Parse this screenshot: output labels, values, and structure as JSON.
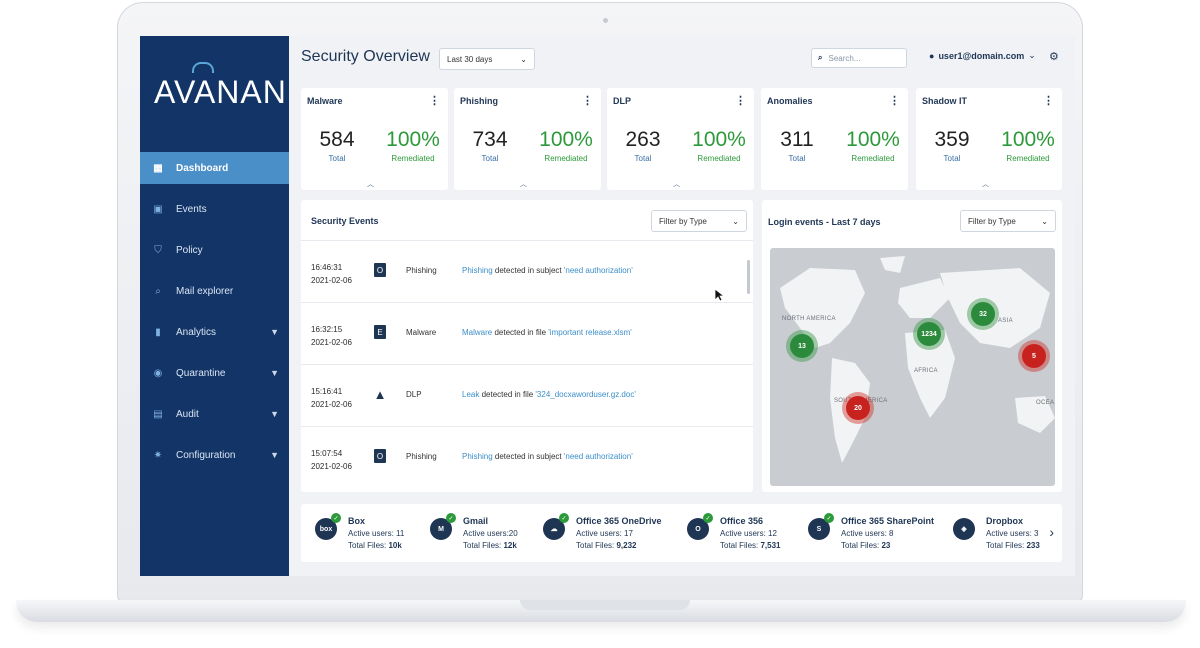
{
  "header": {
    "title": "Security Overview",
    "range": "Last 30 days",
    "search_placeholder": "Search...",
    "user": "user1@domain.com"
  },
  "sidebar": {
    "logo": "AVANAN",
    "items": [
      {
        "label": "Dashboard",
        "icon": "dashboard-icon",
        "active": true,
        "expand": false
      },
      {
        "label": "Events",
        "icon": "calendar-icon",
        "active": false,
        "expand": false
      },
      {
        "label": "Policy",
        "icon": "shield-icon",
        "active": false,
        "expand": false
      },
      {
        "label": "Mail explorer",
        "icon": "search-icon",
        "active": false,
        "expand": false
      },
      {
        "label": "Analytics",
        "icon": "analytics-icon",
        "active": false,
        "expand": true
      },
      {
        "label": "Quarantine",
        "icon": "quarantine-icon",
        "active": false,
        "expand": true
      },
      {
        "label": "Audit",
        "icon": "audit-icon",
        "active": false,
        "expand": true
      },
      {
        "label": "Configuration",
        "icon": "gear-icon",
        "active": false,
        "expand": true
      }
    ]
  },
  "metrics": [
    {
      "name": "Malware",
      "total": "584",
      "total_label": "Total",
      "pct": "100%",
      "pct_label": "Remediated"
    },
    {
      "name": "Phishing",
      "total": "734",
      "total_label": "Total",
      "pct": "100%",
      "pct_label": "Remediated"
    },
    {
      "name": "DLP",
      "total": "263",
      "total_label": "Total",
      "pct": "100%",
      "pct_label": "Remediated"
    },
    {
      "name": "Anomalies",
      "total": "311",
      "total_label": "Total",
      "pct": "100%",
      "pct_label": "Remediated"
    },
    {
      "name": "Shadow IT",
      "total": "359",
      "total_label": "Total",
      "pct": "100%",
      "pct_label": "Remediated"
    }
  ],
  "events": {
    "title": "Security Events",
    "filter": "Filter by Type",
    "rows": [
      {
        "time": "16:46:31",
        "date": "2021-02-06",
        "icon": "office-icon",
        "type": "Phishing",
        "desc_link": "Phishing",
        "desc_text": " detected in subject ",
        "desc_quote": "'need authorization'"
      },
      {
        "time": "16:32:15",
        "date": "2021-02-06",
        "icon": "exchange-icon",
        "type": "Malware",
        "desc_link": "Malware",
        "desc_text": " detected in file ",
        "desc_quote": "'important release.xlsm'"
      },
      {
        "time": "15:16:41",
        "date": "2021-02-06",
        "icon": "drive-icon",
        "type": "DLP",
        "desc_link": "Leak",
        "desc_text": " detected in file ",
        "desc_quote": "'324_docxaworduser.gz.doc'"
      },
      {
        "time": "15:07:54",
        "date": "2021-02-06",
        "icon": "office-icon",
        "type": "Phishing",
        "desc_link": "Phishing",
        "desc_text": " detected in subject ",
        "desc_quote": "'need authorization'"
      }
    ]
  },
  "login": {
    "title": "Login events - Last 7 days",
    "filter": "Filter by Type",
    "regions": [
      "NORTH AMERICA",
      "ASIA",
      "AFRICA",
      "SOUTH AMERICA",
      "OCEA"
    ],
    "clusters": [
      {
        "label": "13",
        "status": "ok"
      },
      {
        "label": "1234",
        "status": "ok"
      },
      {
        "label": "32",
        "status": "ok"
      },
      {
        "label": "5",
        "status": "alert"
      },
      {
        "label": "20",
        "status": "alert"
      }
    ]
  },
  "apps": [
    {
      "name": "Box",
      "icon": "box-icon",
      "users": "Active users: 11",
      "files_label": "Total Files: ",
      "files": "10k"
    },
    {
      "name": "Gmail",
      "icon": "gmail-icon",
      "users": "Active users:20",
      "files_label": "Total Files: ",
      "files": "12k"
    },
    {
      "name": "Office 365 OneDrive",
      "icon": "onedrive-icon",
      "users": "Active users: 17",
      "files_label": "Total Files: ",
      "files": "9,232"
    },
    {
      "name": "Office 356",
      "icon": "office-icon",
      "users": "Active users: 12",
      "files_label": "Total Files: ",
      "files": "7,531"
    },
    {
      "name": "Office 365 SharePoint",
      "icon": "sharepoint-icon",
      "users": "Active users: 8",
      "files_label": "Total Files: ",
      "files": "23"
    },
    {
      "name": "Dropbox",
      "icon": "dropbox-icon",
      "users": "Active users: 3",
      "files_label": "Total Files: ",
      "files": "233"
    }
  ],
  "colors": {
    "sidebar": "#123466",
    "active": "#4a8fc7",
    "ok": "#2b8a3b",
    "alert": "#c8221f",
    "accent": "#2c9a3a"
  }
}
